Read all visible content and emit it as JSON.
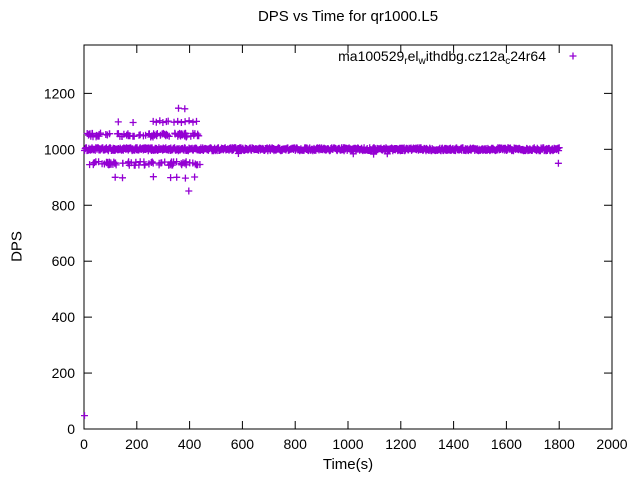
{
  "chart_data": {
    "type": "scatter",
    "title": "DPS vs Time for qr1000.L5",
    "xlabel": "Time(s)",
    "ylabel": "DPS",
    "xlim": [
      0,
      2000
    ],
    "ylim": [
      0,
      1373
    ],
    "xticks": [
      0,
      200,
      400,
      600,
      800,
      1000,
      1200,
      1400,
      1600,
      1800,
      2000
    ],
    "yticks": [
      0,
      200,
      400,
      600,
      800,
      1000,
      1200
    ],
    "grid": false,
    "legend_position": "top-right-inside",
    "marker": "plus",
    "background": "#ffffff",
    "border_color": "#000000",
    "series": [
      {
        "name": "ma100529_rel_withdbg.cz12a_c24r64",
        "label_segments": [
          {
            "text": "ma100529"
          },
          {
            "text": "r",
            "sub": true
          },
          {
            "text": "el"
          },
          {
            "text": "w",
            "sub": true
          },
          {
            "text": "ithdbg.cz12a"
          },
          {
            "text": "c",
            "sub": true
          },
          {
            "text": "24r64"
          }
        ],
        "color": "#9400d3",
        "bands": [
          {
            "desc": "steady DPS band ~1000",
            "x_start": 2,
            "x_end": 1800,
            "y_min": 995,
            "y_max": 1006,
            "count": 760,
            "spacing": "even"
          },
          {
            "desc": "upper fluctuation band ~1050",
            "x_start": 10,
            "x_end": 442,
            "y_min": 1044,
            "y_max": 1058,
            "count": 85,
            "spacing": "random"
          },
          {
            "desc": "lower fluctuation band ~950",
            "x_start": 12,
            "x_end": 440,
            "y_min": 943,
            "y_max": 956,
            "count": 72,
            "spacing": "random"
          }
        ],
        "points": [
          [
            2,
            48
          ],
          [
            130,
            1098
          ],
          [
            186,
            1096
          ],
          [
            262,
            1100
          ],
          [
            274,
            1097
          ],
          [
            287,
            1102
          ],
          [
            299,
            1096
          ],
          [
            312,
            1099
          ],
          [
            319,
            1101
          ],
          [
            341,
            1097
          ],
          [
            355,
            1100
          ],
          [
            369,
            1096
          ],
          [
            383,
            1099
          ],
          [
            398,
            1102
          ],
          [
            413,
            1097
          ],
          [
            426,
            1100
          ],
          [
            358,
            1147
          ],
          [
            382,
            1145
          ],
          [
            118,
            900
          ],
          [
            146,
            898
          ],
          [
            263,
            902
          ],
          [
            328,
            899
          ],
          [
            351,
            900
          ],
          [
            384,
            897
          ],
          [
            419,
            901
          ],
          [
            397,
            851
          ],
          [
            585,
            985
          ],
          [
            1020,
            984
          ],
          [
            1097,
            983
          ],
          [
            1149,
            984
          ],
          [
            1797,
            950
          ]
        ]
      }
    ]
  }
}
